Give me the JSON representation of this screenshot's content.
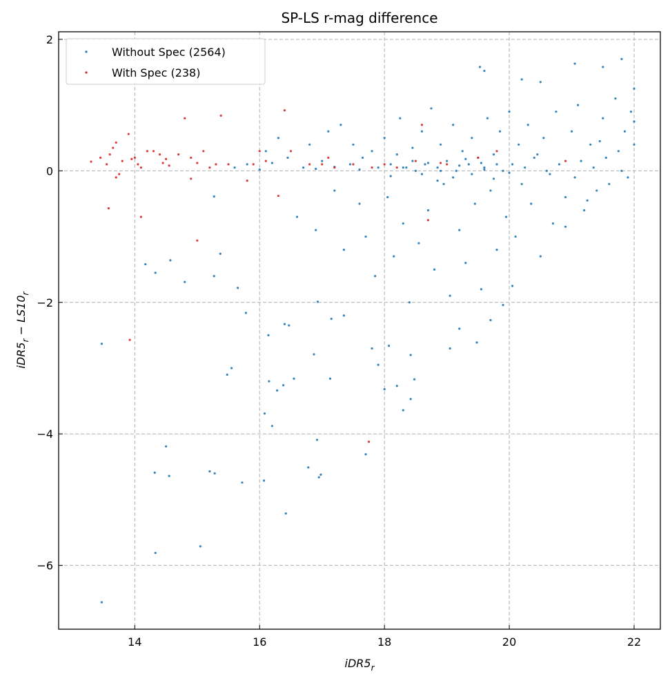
{
  "chart_data": {
    "type": "scatter",
    "title": "SP-LS r-mag difference",
    "xlabel": "iDR5",
    "xlabel_sub": "r",
    "ylabel_parts": [
      "iDR5",
      "r",
      " − LS10",
      "r"
    ],
    "xlim": [
      12.78,
      22.42
    ],
    "ylim": [
      -6.97,
      2.115
    ],
    "xticks": [
      14,
      16,
      18,
      20,
      22
    ],
    "xtick_labels": [
      "14",
      "16",
      "18",
      "20",
      "22"
    ],
    "yticks": [
      2,
      0,
      -2,
      -4,
      -6
    ],
    "ytick_labels": [
      "2",
      "0",
      "−2",
      "−4",
      "−6"
    ],
    "grid": true,
    "legend_position": "top-left",
    "series": [
      {
        "name": "Without Spec (2564)",
        "color": "#1f77b4",
        "note": "sampled subset of points",
        "points": [
          [
            13.47,
            -2.63
          ],
          [
            13.47,
            -6.56
          ],
          [
            14.33,
            -5.81
          ],
          [
            15.05,
            -5.71
          ],
          [
            14.17,
            -1.42
          ],
          [
            14.33,
            -1.55
          ],
          [
            14.57,
            -1.36
          ],
          [
            14.8,
            -1.69
          ],
          [
            15.27,
            -1.6
          ],
          [
            15.27,
            -0.39
          ],
          [
            15.37,
            -1.26
          ],
          [
            15.48,
            -3.1
          ],
          [
            15.55,
            -3.0
          ],
          [
            15.65,
            -1.78
          ],
          [
            15.78,
            -2.16
          ],
          [
            14.5,
            -4.19
          ],
          [
            14.32,
            -4.59
          ],
          [
            14.55,
            -4.64
          ],
          [
            15.2,
            -4.57
          ],
          [
            15.28,
            -4.6
          ],
          [
            15.72,
            -4.74
          ],
          [
            16.07,
            -4.71
          ],
          [
            16.42,
            -5.21
          ],
          [
            16.08,
            -3.69
          ],
          [
            16.15,
            -3.2
          ],
          [
            16.2,
            -3.88
          ],
          [
            16.28,
            -3.34
          ],
          [
            16.38,
            -3.26
          ],
          [
            16.55,
            -3.16
          ],
          [
            16.14,
            -2.5
          ],
          [
            16.4,
            -2.33
          ],
          [
            16.47,
            -2.35
          ],
          [
            16.78,
            -4.51
          ],
          [
            16.92,
            -4.09
          ],
          [
            16.95,
            -4.66
          ],
          [
            16.98,
            -4.62
          ],
          [
            16.87,
            -2.79
          ],
          [
            17.13,
            -3.16
          ],
          [
            17.7,
            -4.31
          ],
          [
            18.0,
            -3.32
          ],
          [
            18.3,
            -3.64
          ],
          [
            18.42,
            -3.47
          ],
          [
            18.48,
            -3.17
          ],
          [
            18.2,
            -3.27
          ],
          [
            18.42,
            -2.8
          ],
          [
            16.93,
            -1.99
          ],
          [
            17.15,
            -2.25
          ],
          [
            17.35,
            -2.2
          ],
          [
            17.8,
            -2.7
          ],
          [
            17.9,
            -2.95
          ],
          [
            18.07,
            -2.66
          ],
          [
            19.05,
            -2.7
          ],
          [
            19.2,
            -2.4
          ],
          [
            19.48,
            -2.61
          ],
          [
            19.7,
            -2.27
          ],
          [
            19.9,
            -2.04
          ],
          [
            20.05,
            -1.75
          ],
          [
            20.9,
            -0.85
          ],
          [
            21.8,
            1.7
          ],
          [
            21.05,
            1.63
          ],
          [
            19.53,
            1.58
          ],
          [
            19.6,
            1.52
          ],
          [
            22.0,
            1.25
          ],
          [
            20.2,
            1.39
          ],
          [
            20.5,
            1.35
          ],
          [
            21.5,
            1.58
          ],
          [
            15.6,
            0.05
          ],
          [
            15.8,
            0.1
          ],
          [
            16.0,
            0.02
          ],
          [
            16.1,
            0.3
          ],
          [
            16.2,
            0.12
          ],
          [
            16.3,
            0.5
          ],
          [
            16.45,
            0.2
          ],
          [
            16.6,
            -0.7
          ],
          [
            16.7,
            0.05
          ],
          [
            16.8,
            0.4
          ],
          [
            16.9,
            -0.9
          ],
          [
            17.0,
            0.15
          ],
          [
            17.1,
            0.6
          ],
          [
            17.2,
            -0.3
          ],
          [
            17.3,
            0.7
          ],
          [
            17.35,
            -1.2
          ],
          [
            17.45,
            0.1
          ],
          [
            17.5,
            0.4
          ],
          [
            17.6,
            -0.5
          ],
          [
            17.65,
            0.2
          ],
          [
            17.7,
            -1.0
          ],
          [
            17.8,
            0.3
          ],
          [
            17.85,
            -1.6
          ],
          [
            17.9,
            0.05
          ],
          [
            18.0,
            0.5
          ],
          [
            18.05,
            -0.4
          ],
          [
            18.1,
            0.1
          ],
          [
            18.15,
            -1.3
          ],
          [
            18.2,
            0.25
          ],
          [
            18.25,
            0.8
          ],
          [
            18.3,
            -0.8
          ],
          [
            18.35,
            0.05
          ],
          [
            18.4,
            -2.0
          ],
          [
            18.45,
            0.35
          ],
          [
            18.5,
            0.0
          ],
          [
            18.55,
            -1.1
          ],
          [
            18.6,
            0.6
          ],
          [
            18.65,
            0.1
          ],
          [
            18.7,
            -0.6
          ],
          [
            18.75,
            0.95
          ],
          [
            18.8,
            -1.5
          ],
          [
            18.85,
            0.05
          ],
          [
            18.9,
            0.4
          ],
          [
            18.95,
            -0.2
          ],
          [
            19.0,
            0.15
          ],
          [
            19.05,
            -1.9
          ],
          [
            19.1,
            0.7
          ],
          [
            19.15,
            0.0
          ],
          [
            19.2,
            -0.9
          ],
          [
            19.25,
            0.3
          ],
          [
            19.3,
            -1.4
          ],
          [
            19.35,
            0.1
          ],
          [
            19.4,
            0.5
          ],
          [
            19.45,
            -0.5
          ],
          [
            19.5,
            0.2
          ],
          [
            19.55,
            -1.8
          ],
          [
            19.6,
            0.05
          ],
          [
            19.65,
            0.8
          ],
          [
            19.7,
            -0.3
          ],
          [
            19.75,
            0.25
          ],
          [
            19.8,
            -1.2
          ],
          [
            19.85,
            0.6
          ],
          [
            19.9,
            0.0
          ],
          [
            19.95,
            -0.7
          ],
          [
            20.0,
            0.9
          ],
          [
            20.05,
            0.1
          ],
          [
            20.1,
            -1.0
          ],
          [
            20.15,
            0.4
          ],
          [
            20.2,
            -0.2
          ],
          [
            20.3,
            0.7
          ],
          [
            20.35,
            -0.5
          ],
          [
            20.4,
            0.2
          ],
          [
            20.5,
            -1.3
          ],
          [
            20.55,
            0.5
          ],
          [
            20.6,
            0.0
          ],
          [
            20.7,
            -0.8
          ],
          [
            20.75,
            0.9
          ],
          [
            20.8,
            0.1
          ],
          [
            20.9,
            -0.4
          ],
          [
            21.0,
            0.6
          ],
          [
            21.05,
            -0.1
          ],
          [
            21.1,
            1.0
          ],
          [
            21.2,
            -0.6
          ],
          [
            21.3,
            0.4
          ],
          [
            21.35,
            0.05
          ],
          [
            21.4,
            -0.3
          ],
          [
            21.5,
            0.8
          ],
          [
            21.55,
            0.2
          ],
          [
            21.6,
            -0.2
          ],
          [
            21.7,
            1.1
          ],
          [
            21.75,
            0.3
          ],
          [
            21.8,
            0.0
          ],
          [
            21.85,
            0.6
          ],
          [
            21.9,
            -0.1
          ],
          [
            21.95,
            0.9
          ],
          [
            22.0,
            0.4
          ],
          [
            22.0,
            0.75
          ],
          [
            18.3,
            0.05
          ],
          [
            18.6,
            -0.05
          ],
          [
            18.9,
            0.0
          ],
          [
            19.2,
            0.08
          ],
          [
            19.4,
            -0.05
          ],
          [
            19.6,
            0.02
          ],
          [
            19.8,
            0.1
          ],
          [
            20.0,
            -0.03
          ],
          [
            18.7,
            0.12
          ],
          [
            19.1,
            -0.1
          ],
          [
            19.3,
            0.18
          ],
          [
            18.1,
            -0.08
          ],
          [
            17.6,
            0.02
          ],
          [
            17.2,
            0.06
          ],
          [
            16.9,
            0.03
          ],
          [
            18.45,
            0.15
          ],
          [
            18.85,
            -0.15
          ],
          [
            19.55,
            0.12
          ],
          [
            19.75,
            -0.12
          ],
          [
            20.25,
            0.05
          ],
          [
            20.45,
            0.25
          ],
          [
            20.65,
            -0.05
          ],
          [
            21.15,
            0.15
          ],
          [
            21.45,
            0.45
          ],
          [
            21.25,
            -0.45
          ]
        ]
      },
      {
        "name": "With Spec (238)",
        "color": "#d62728",
        "note": "sampled subset of points",
        "points": [
          [
            13.3,
            0.14
          ],
          [
            13.45,
            0.2
          ],
          [
            13.55,
            0.1
          ],
          [
            13.6,
            0.25
          ],
          [
            13.65,
            0.35
          ],
          [
            13.7,
            0.43
          ],
          [
            13.75,
            -0.05
          ],
          [
            13.8,
            0.15
          ],
          [
            13.9,
            0.56
          ],
          [
            13.95,
            0.18
          ],
          [
            14.0,
            0.2
          ],
          [
            14.05,
            0.1
          ],
          [
            14.1,
            0.05
          ],
          [
            14.2,
            0.3
          ],
          [
            14.3,
            0.3
          ],
          [
            14.4,
            0.25
          ],
          [
            14.45,
            0.12
          ],
          [
            14.5,
            0.18
          ],
          [
            14.55,
            0.08
          ],
          [
            14.7,
            0.25
          ],
          [
            14.8,
            0.8
          ],
          [
            14.9,
            0.2
          ],
          [
            15.0,
            0.12
          ],
          [
            15.1,
            0.3
          ],
          [
            15.2,
            0.05
          ],
          [
            15.3,
            0.1
          ],
          [
            15.38,
            0.84
          ],
          [
            15.5,
            0.1
          ],
          [
            15.9,
            0.1
          ],
          [
            16.0,
            0.3
          ],
          [
            16.1,
            0.15
          ],
          [
            16.3,
            -0.38
          ],
          [
            16.4,
            0.92
          ],
          [
            16.5,
            0.3
          ],
          [
            16.8,
            0.1
          ],
          [
            17.0,
            0.1
          ],
          [
            17.2,
            0.05
          ],
          [
            17.5,
            0.1
          ],
          [
            17.8,
            0.05
          ],
          [
            18.0,
            0.1
          ],
          [
            18.5,
            0.15
          ],
          [
            18.7,
            -0.75
          ],
          [
            18.6,
            0.7
          ],
          [
            19.0,
            0.1
          ],
          [
            19.5,
            0.2
          ],
          [
            19.8,
            0.3
          ],
          [
            20.9,
            0.15
          ],
          [
            13.58,
            -0.57
          ],
          [
            14.1,
            -0.7
          ],
          [
            15.0,
            -1.06
          ],
          [
            13.92,
            -2.57
          ],
          [
            17.75,
            -4.12
          ],
          [
            15.8,
            -0.15
          ],
          [
            13.7,
            -0.1
          ],
          [
            14.9,
            -0.12
          ],
          [
            17.1,
            0.2
          ],
          [
            18.2,
            0.05
          ],
          [
            18.9,
            0.12
          ]
        ]
      }
    ]
  }
}
